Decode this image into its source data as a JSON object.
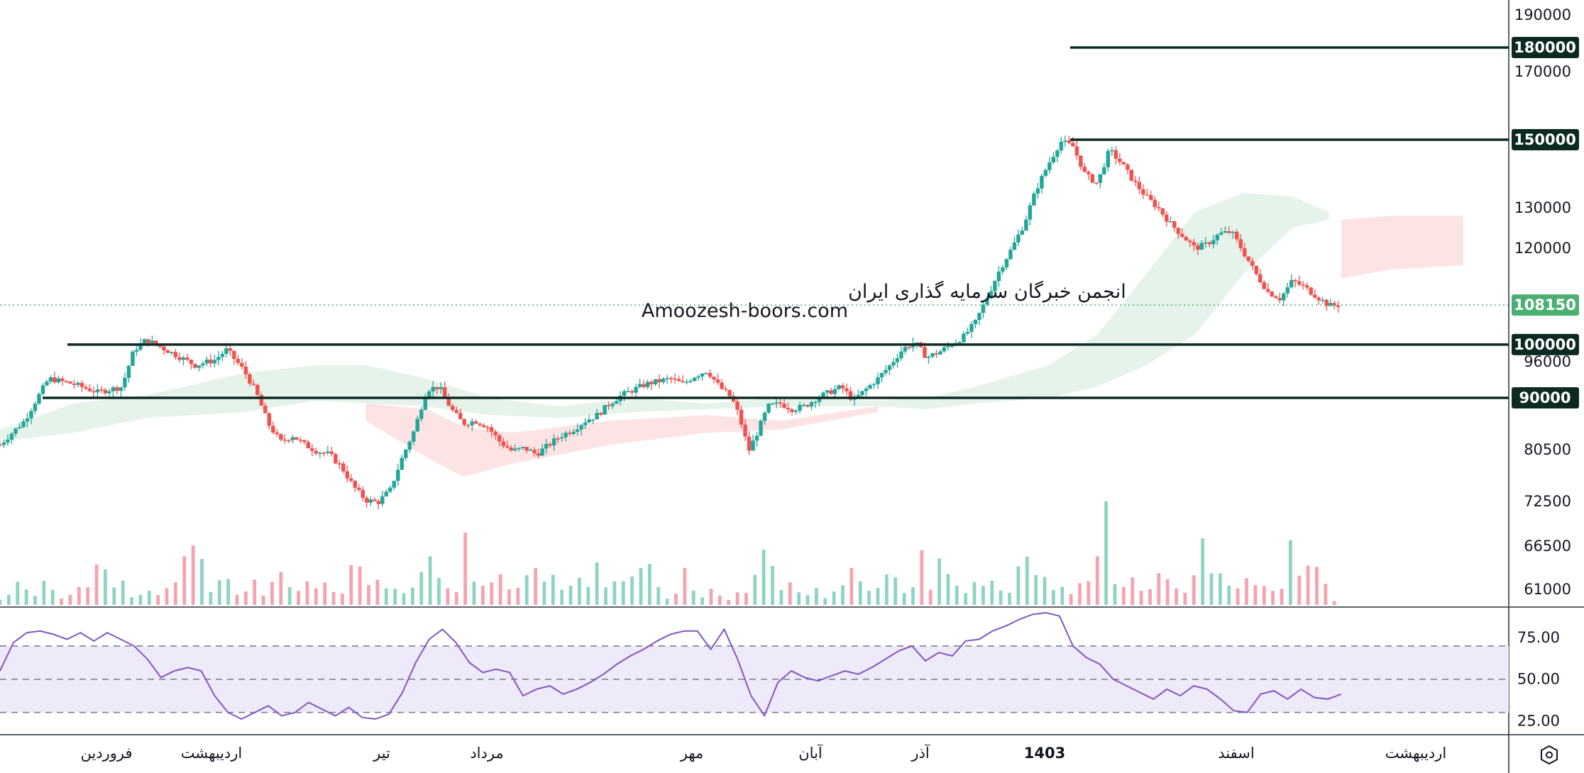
{
  "watermark": {
    "line1": "انجمن خبرگان سرمایه گذاری ایران",
    "line2": "Amoozesh-boors.com"
  },
  "colors": {
    "up": "#26a69a",
    "down": "#ef5350",
    "vol_up": "#8fd3c3",
    "vol_down": "#f5a3ae",
    "cloud_up": "#e6f3ea",
    "cloud_down": "#fce3e4",
    "level_line": "#0d2a22",
    "last_price": "#4caf72",
    "rsi_line": "#7e57c2",
    "rsi_band": "#efeafa"
  },
  "settings_icon": "settings-hexagon-icon",
  "chart_data": [
    {
      "type": "candlestick",
      "y_axis_scale": "log",
      "ylim": [
        57500,
        200000
      ],
      "y_ticks": [
        "190000",
        "170000",
        "130000",
        "120000",
        "96000",
        "80500",
        "72500",
        "66500",
        "61000"
      ],
      "x_labels": [
        "فروردین",
        "اردیبهشت",
        "تیر",
        "مرداد",
        "مهر",
        "آبان",
        "آذر",
        "1403",
        "اسفند",
        "اردیبهشت"
      ],
      "horizontal_levels": [
        {
          "value": 180000,
          "label": "180000"
        },
        {
          "value": 150000,
          "label": "150000"
        },
        {
          "value": 100000,
          "label": "100000"
        },
        {
          "value": 90000,
          "label": "90000"
        }
      ],
      "last_price": {
        "value": 108150,
        "label": "108150"
      },
      "price_path": [
        [
          0,
          82000
        ],
        [
          10,
          86000
        ],
        [
          20,
          93500
        ],
        [
          30,
          92500
        ],
        [
          40,
          91000
        ],
        [
          50,
          92000
        ],
        [
          55,
          99000
        ],
        [
          60,
          101000
        ],
        [
          70,
          98500
        ],
        [
          80,
          96000
        ],
        [
          88,
          97000
        ],
        [
          93,
          99000
        ],
        [
          100,
          95000
        ],
        [
          105,
          91000
        ],
        [
          110,
          85500
        ],
        [
          115,
          82500
        ],
        [
          120,
          83500
        ],
        [
          125,
          82000
        ],
        [
          130,
          81000
        ],
        [
          135,
          80500
        ],
        [
          140,
          78500
        ],
        [
          145,
          75500
        ],
        [
          150,
          73500
        ],
        [
          155,
          73200
        ],
        [
          160,
          75000
        ],
        [
          165,
          80000
        ],
        [
          170,
          84500
        ],
        [
          175,
          91500
        ],
        [
          180,
          92000
        ],
        [
          185,
          88000
        ],
        [
          190,
          85500
        ],
        [
          195,
          86000
        ],
        [
          200,
          85000
        ],
        [
          205,
          82500
        ],
        [
          210,
          81000
        ],
        [
          215,
          81500
        ],
        [
          220,
          80500
        ],
        [
          225,
          82000
        ],
        [
          230,
          83500
        ],
        [
          235,
          84500
        ],
        [
          240,
          86000
        ],
        [
          245,
          87000
        ],
        [
          250,
          89000
        ],
        [
          255,
          90500
        ],
        [
          260,
          91500
        ],
        [
          265,
          92500
        ],
        [
          270,
          93000
        ],
        [
          275,
          93500
        ],
        [
          280,
          92500
        ],
        [
          285,
          94000
        ],
        [
          290,
          95000
        ],
        [
          295,
          92000
        ],
        [
          300,
          90000
        ],
        [
          303,
          87000
        ],
        [
          307,
          81000
        ],
        [
          310,
          83500
        ],
        [
          315,
          88500
        ],
        [
          320,
          89000
        ],
        [
          325,
          88000
        ],
        [
          330,
          88500
        ],
        [
          335,
          90000
        ],
        [
          340,
          91000
        ],
        [
          345,
          92000
        ],
        [
          350,
          89500
        ],
        [
          355,
          91500
        ],
        [
          360,
          93500
        ],
        [
          365,
          96000
        ],
        [
          370,
          99000
        ],
        [
          375,
          100500
        ],
        [
          380,
          97500
        ],
        [
          385,
          98500
        ],
        [
          390,
          100000
        ],
        [
          395,
          101500
        ],
        [
          400,
          104500
        ],
        [
          405,
          110000
        ],
        [
          410,
          116000
        ],
        [
          415,
          121000
        ],
        [
          420,
          127000
        ],
        [
          425,
          136000
        ],
        [
          430,
          143000
        ],
        [
          435,
          149500
        ],
        [
          440,
          148000
        ],
        [
          445,
          140000
        ],
        [
          450,
          137500
        ],
        [
          455,
          147000
        ],
        [
          460,
          143000
        ],
        [
          465,
          138000
        ],
        [
          470,
          134000
        ],
        [
          475,
          131000
        ],
        [
          480,
          127000
        ],
        [
          485,
          124000
        ],
        [
          490,
          121000
        ],
        [
          495,
          122000
        ],
        [
          500,
          124500
        ],
        [
          505,
          125000
        ],
        [
          510,
          120000
        ],
        [
          515,
          115000
        ],
        [
          520,
          111000
        ],
        [
          525,
          109500
        ],
        [
          530,
          113500
        ],
        [
          535,
          112000
        ],
        [
          540,
          110000
        ],
        [
          545,
          108000
        ],
        [
          550,
          108150
        ]
      ],
      "volume_relative": [
        0.1,
        0.2,
        0.35,
        0.3,
        0.15,
        0.4,
        0.25,
        0.1,
        0.2,
        0.3,
        0.45,
        0.85,
        0.6,
        0.3,
        0.4,
        0.2,
        0.25,
        0.35,
        0.15,
        0.3,
        0.4,
        0.75,
        0.5,
        0.35,
        0.3,
        0.55,
        0.45,
        0.25,
        0.35,
        0.4,
        0.25,
        0.5,
        0.6,
        0.4,
        0.3,
        0.55,
        0.4,
        0.45,
        0.35,
        0.3,
        0.6,
        0.8,
        0.45,
        0.55,
        0.3,
        0.4,
        0.2,
        0.45,
        0.5,
        0.9,
        0.7,
        0.4,
        0.3,
        0.5,
        0.35,
        0.3,
        0.6,
        0.5,
        0.4,
        0.3,
        0.45,
        1.0,
        0.55,
        0.5,
        0.4,
        0.3,
        0.5,
        0.35,
        0.45,
        0.3,
        0.4,
        0.5,
        0.55,
        0.95,
        0.7,
        0.4
      ],
      "ichimoku_cloud": {
        "up": [
          [
            0,
            82500,
            84500
          ],
          [
            30,
            84000,
            89000
          ],
          [
            60,
            86500,
            90500
          ],
          [
            100,
            87500,
            94500
          ],
          [
            130,
            89500,
            96000
          ],
          [
            150,
            89000,
            96000
          ],
          [
            175,
            88500,
            93500
          ],
          [
            200,
            87000,
            90000
          ],
          [
            230,
            86500,
            88500
          ],
          [
            260,
            87500,
            90000
          ],
          [
            290,
            88000,
            89000
          ],
          [
            320,
            88500,
            90000
          ],
          [
            360,
            88500,
            89500
          ],
          [
            380,
            88000,
            90000
          ],
          [
            400,
            89000,
            92000
          ],
          [
            430,
            90000,
            96000
          ],
          [
            450,
            92000,
            102000
          ],
          [
            470,
            96000,
            115000
          ],
          [
            490,
            102000,
            130000
          ],
          [
            510,
            115000,
            135000
          ],
          [
            530,
            126000,
            134000
          ],
          [
            545,
            128000,
            130000
          ]
        ],
        "down": [
          [
            150,
            86000,
            89000
          ],
          [
            175,
            80000,
            88000
          ],
          [
            190,
            77000,
            85000
          ],
          [
            210,
            79000,
            84000
          ],
          [
            250,
            82000,
            86000
          ],
          [
            290,
            84000,
            87000
          ],
          [
            320,
            84500,
            86000
          ],
          [
            360,
            87500,
            88500
          ],
          [
            550,
            114000,
            128000
          ],
          [
            570,
            116000,
            129000
          ],
          [
            600,
            117000,
            129000
          ]
        ]
      }
    },
    {
      "type": "line",
      "name": "RSI",
      "ylim": [
        20,
        90
      ],
      "y_ticks": [
        "75.00",
        "50.00",
        "25.00"
      ],
      "band": [
        30,
        70
      ],
      "midline": 50,
      "values": [
        55,
        72,
        78,
        79,
        77,
        74,
        78,
        73,
        78,
        74,
        70,
        62,
        51,
        55,
        57,
        55,
        40,
        30,
        26,
        30,
        34,
        28,
        30,
        36,
        32,
        28,
        33,
        27,
        26,
        29,
        42,
        60,
        74,
        80,
        72,
        60,
        54,
        56,
        54,
        40,
        44,
        46,
        41,
        44,
        48,
        53,
        59,
        64,
        68,
        73,
        77,
        79,
        79,
        68,
        80,
        62,
        40,
        28,
        48,
        55,
        51,
        49,
        52,
        55,
        53,
        57,
        62,
        67,
        70,
        61,
        66,
        64,
        73,
        74,
        79,
        82,
        86,
        89,
        90,
        88,
        70,
        63,
        59,
        50,
        46,
        42,
        38,
        44,
        40,
        46,
        44,
        38,
        31,
        30,
        41,
        43,
        38,
        44,
        39,
        38,
        41
      ]
    }
  ]
}
